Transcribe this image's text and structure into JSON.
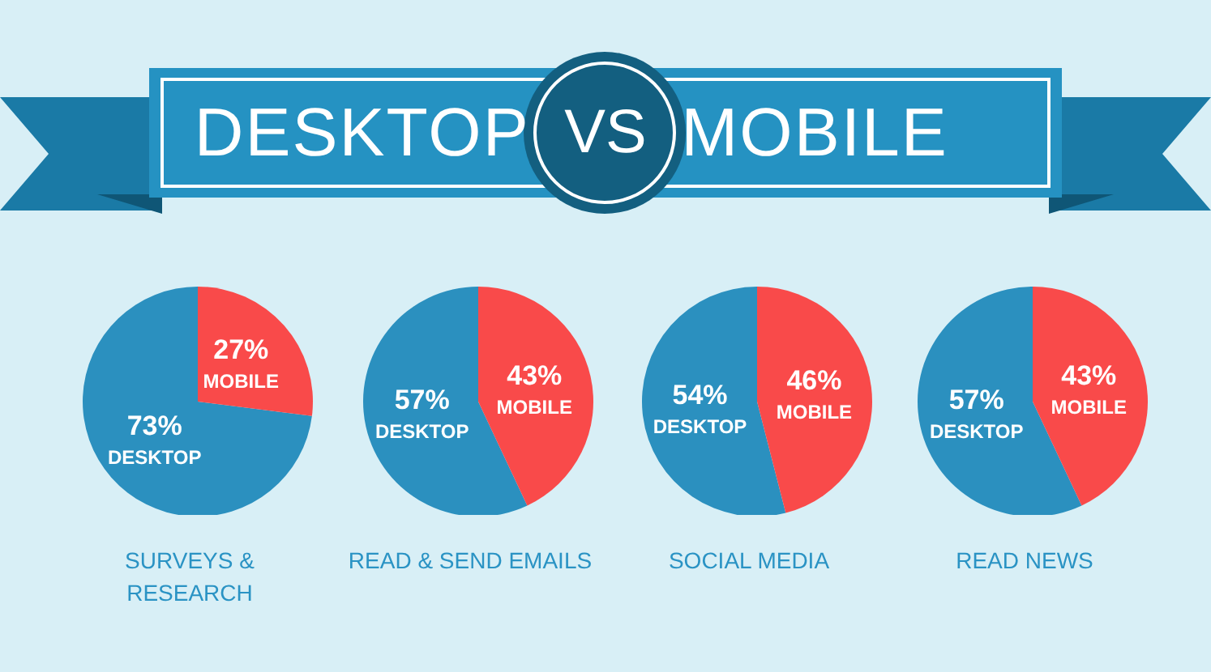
{
  "chart_data": [
    {
      "type": "other",
      "title": "DESKTOP VS MOBILE"
    },
    {
      "type": "pie",
      "title": "SURVEYS  & RESEARCH",
      "categories": [
        "DESKTOP",
        "MOBILE"
      ],
      "values": [
        73,
        27
      ],
      "colors": [
        "#2b90bf",
        "#f94a4a"
      ],
      "value_labels": [
        "73%",
        "27%"
      ]
    },
    {
      "type": "pie",
      "title": "READ & SEND EMAILS",
      "categories": [
        "DESKTOP",
        "MOBILE"
      ],
      "values": [
        57,
        43
      ],
      "colors": [
        "#2b90bf",
        "#f94a4a"
      ],
      "value_labels": [
        "57%",
        "43%"
      ]
    },
    {
      "type": "pie",
      "title": "SOCIAL MEDIA",
      "categories": [
        "DESKTOP",
        "MOBILE"
      ],
      "values": [
        54,
        46
      ],
      "colors": [
        "#2b90bf",
        "#f94a4a"
      ],
      "value_labels": [
        "54%",
        "46%"
      ]
    },
    {
      "type": "pie",
      "title": "READ NEWS",
      "categories": [
        "DESKTOP",
        "MOBILE"
      ],
      "values": [
        57,
        43
      ],
      "colors": [
        "#2b90bf",
        "#f94a4a"
      ],
      "value_labels": [
        "57%",
        "43%"
      ]
    }
  ]
}
